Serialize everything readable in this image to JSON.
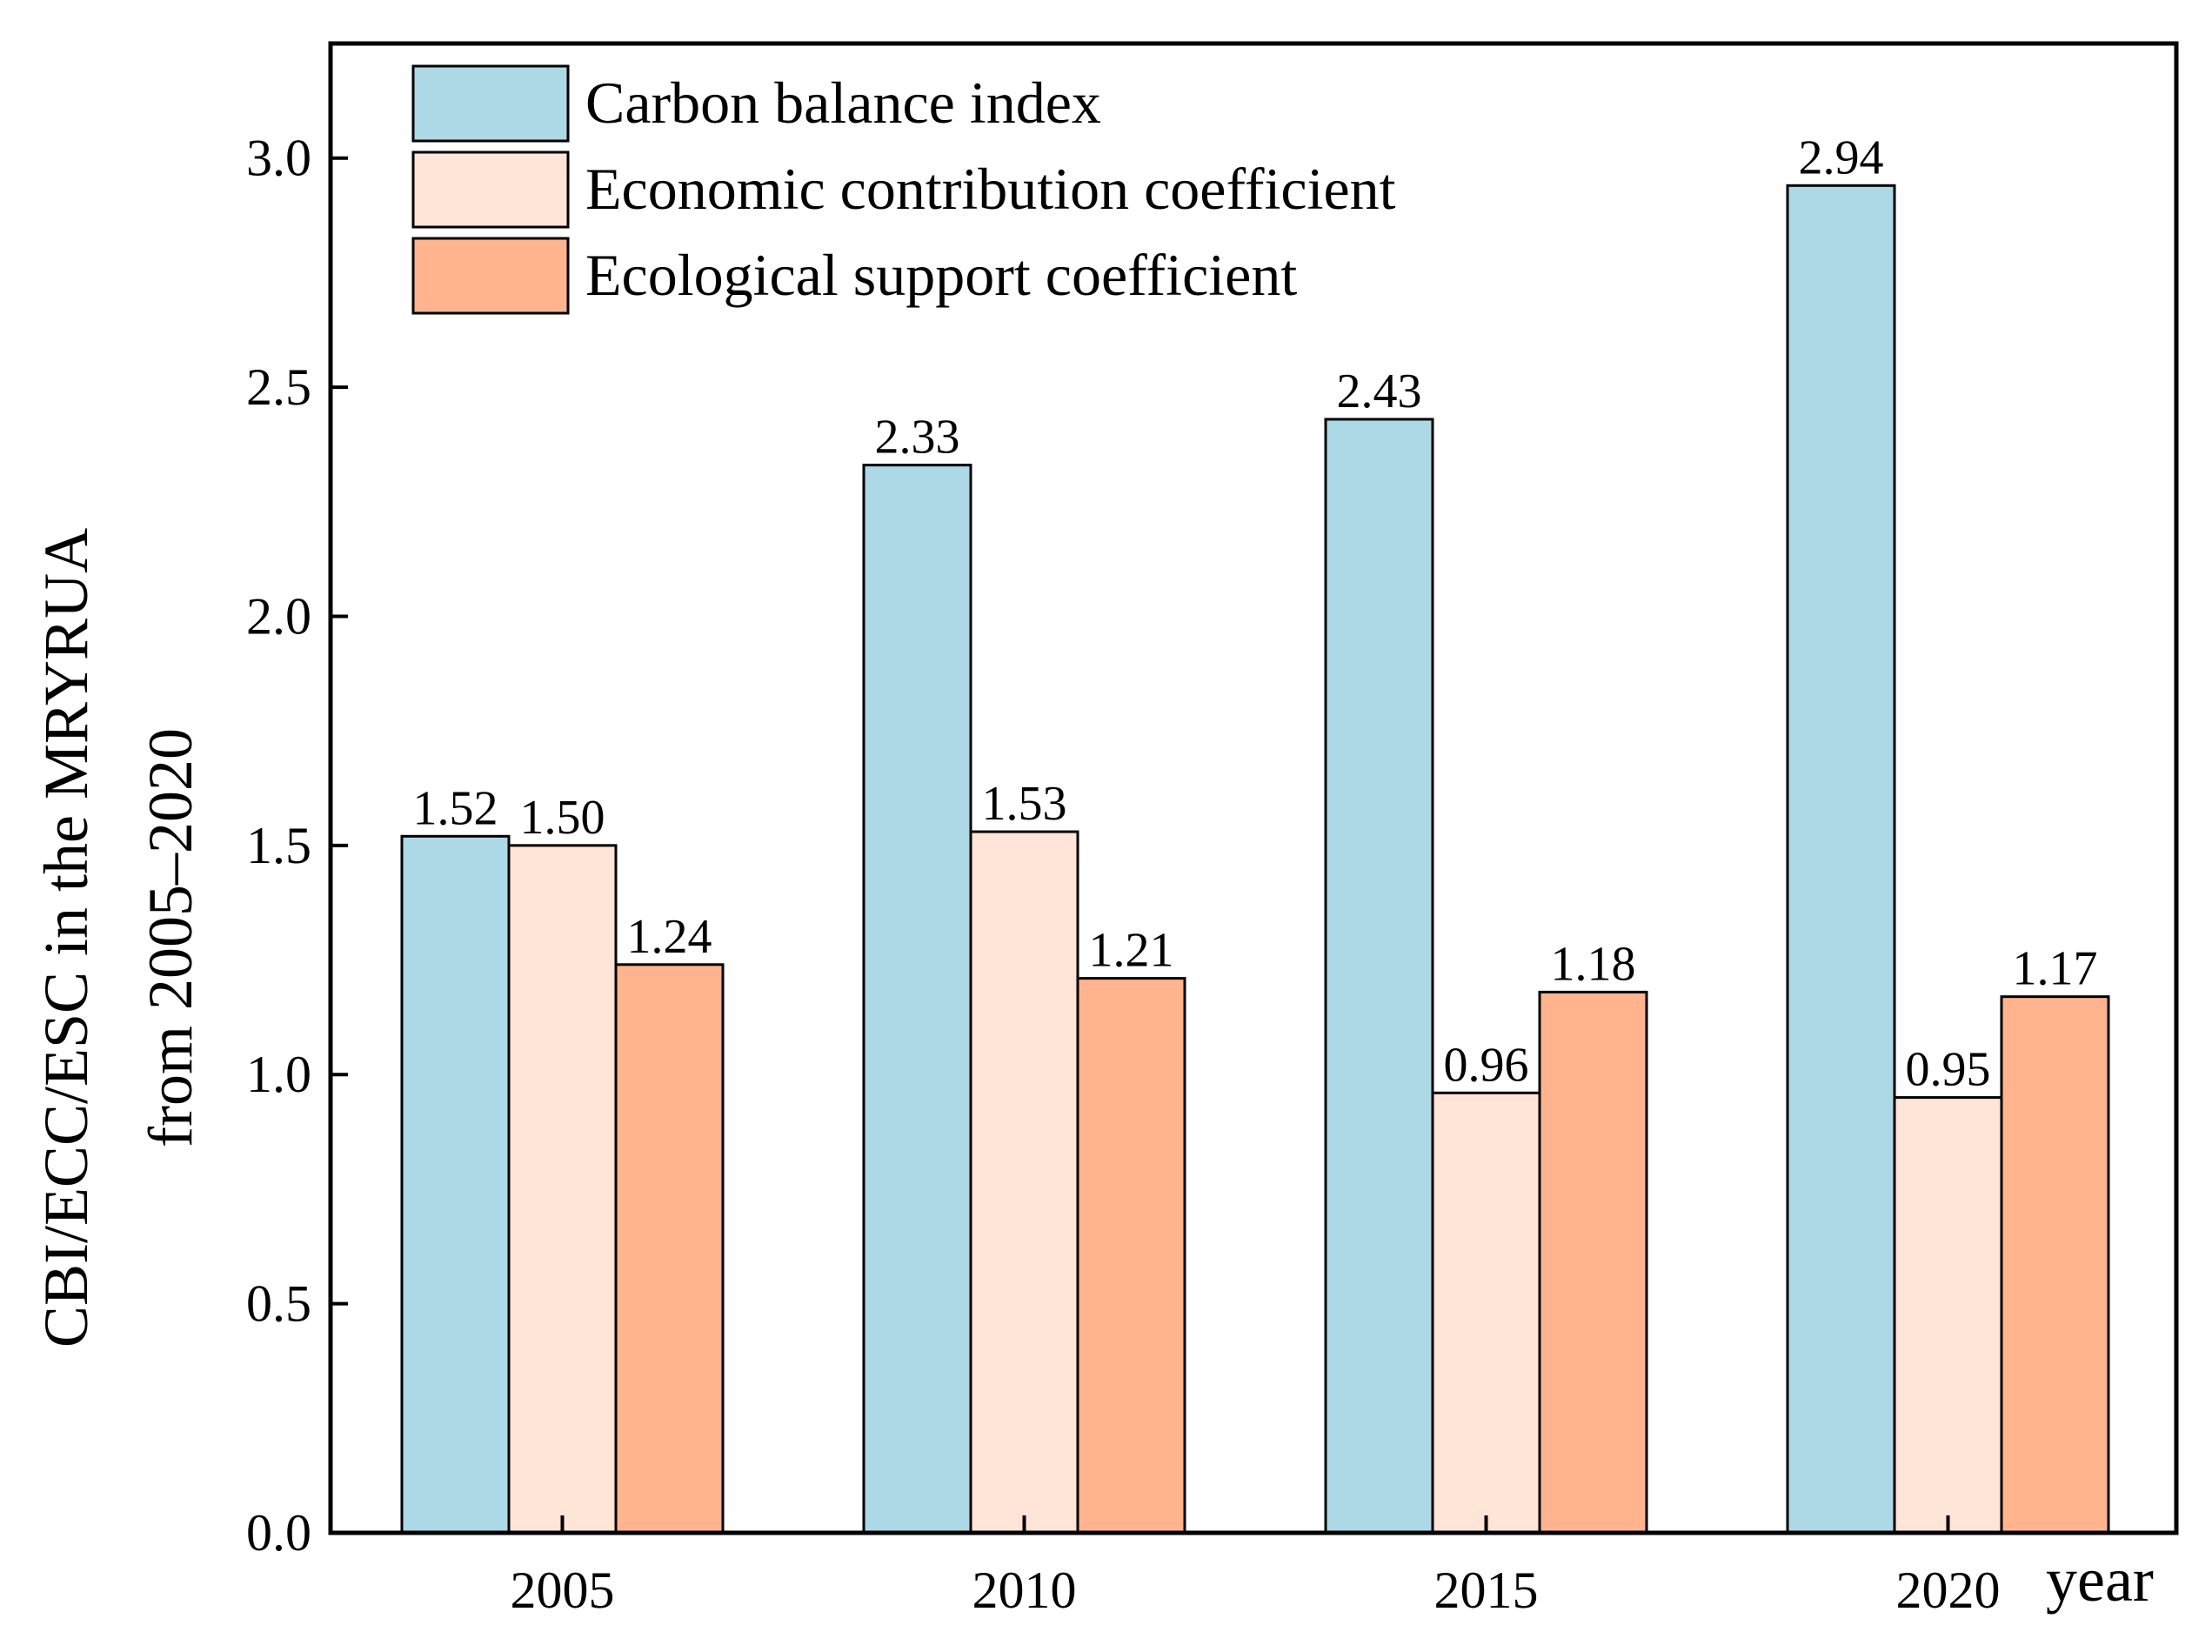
{
  "chart_data": {
    "type": "bar",
    "title": "",
    "xlabel": "year",
    "ylabel": [
      "CBI/ECC/ESC in the MRYRUA",
      "from 2005–2020"
    ],
    "categories": [
      "2005",
      "2010",
      "2015",
      "2020"
    ],
    "ylim": [
      0,
      3.25
    ],
    "yticks": [
      "0.0",
      "0.5",
      "1.0",
      "1.5",
      "2.0",
      "2.5",
      "3.0"
    ],
    "grid": false,
    "legend_position": "top-left",
    "series": [
      {
        "name": "Carbon balance index",
        "color": "#ADD8E6",
        "values": [
          1.52,
          2.33,
          2.43,
          2.94
        ],
        "labels": [
          "1.52",
          "2.33",
          "2.43",
          "2.94"
        ]
      },
      {
        "name": "Economic contribution coefficient",
        "color": "#FFE4D8",
        "values": [
          1.5,
          1.53,
          0.96,
          0.95
        ],
        "labels": [
          "1.50",
          "1.53",
          "0.96",
          "0.95"
        ]
      },
      {
        "name": "Ecological support coefficient",
        "color": "#FFB48E",
        "values": [
          1.24,
          1.21,
          1.18,
          1.17
        ],
        "labels": [
          "1.24",
          "1.21",
          "1.18",
          "1.17"
        ]
      }
    ]
  }
}
